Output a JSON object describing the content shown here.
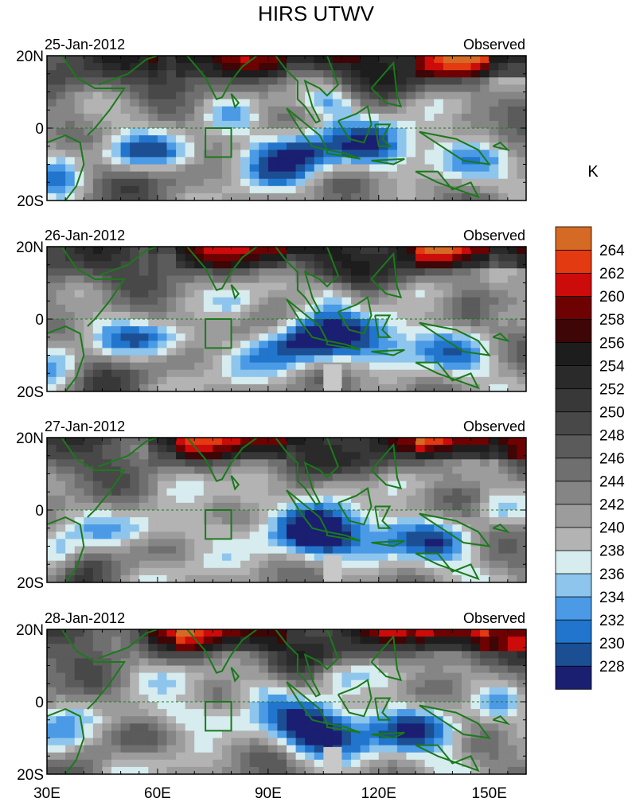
{
  "title": "HIRS UTWV",
  "chart_data": {
    "type": "heatmap",
    "title": "HIRS UTWV",
    "colorbar": {
      "unit": "K",
      "levels": [
        228,
        230,
        232,
        234,
        236,
        238,
        240,
        242,
        244,
        246,
        248,
        250,
        252,
        254,
        256,
        258,
        260,
        262,
        264
      ],
      "colors": [
        "#1b1f72",
        "#1c4e93",
        "#2175cc",
        "#4a9ae6",
        "#8ec5ec",
        "#d6ecef",
        "#b3b3b3",
        "#9c9c9c",
        "#858585",
        "#6f6f6f",
        "#5b5b5b",
        "#484848",
        "#383838",
        "#2a2a2a",
        "#1d1d1d",
        "#3e0606",
        "#6e0202",
        "#cc0b0b",
        "#e33a12",
        "#d56a25"
      ]
    },
    "x_axis": {
      "range": [
        30,
        160
      ],
      "ticks": [
        30,
        60,
        90,
        120,
        150
      ],
      "tick_labels": [
        "30E",
        "60E",
        "90E",
        "120E",
        "150E"
      ]
    },
    "y_axis": {
      "range": [
        -20,
        20
      ],
      "ticks": [
        20,
        0,
        -20
      ],
      "tick_labels": [
        "20N",
        "0",
        "20S"
      ]
    },
    "panels": [
      {
        "date": "25-Jan-2012",
        "label": "Observed"
      },
      {
        "date": "26-Jan-2012",
        "label": "Observed"
      },
      {
        "date": "27-Jan-2012",
        "label": "Observed"
      },
      {
        "date": "28-Jan-2012",
        "label": "Observed"
      }
    ],
    "box_region": {
      "lon": [
        73,
        80
      ],
      "lat": [
        -8,
        0
      ]
    }
  }
}
